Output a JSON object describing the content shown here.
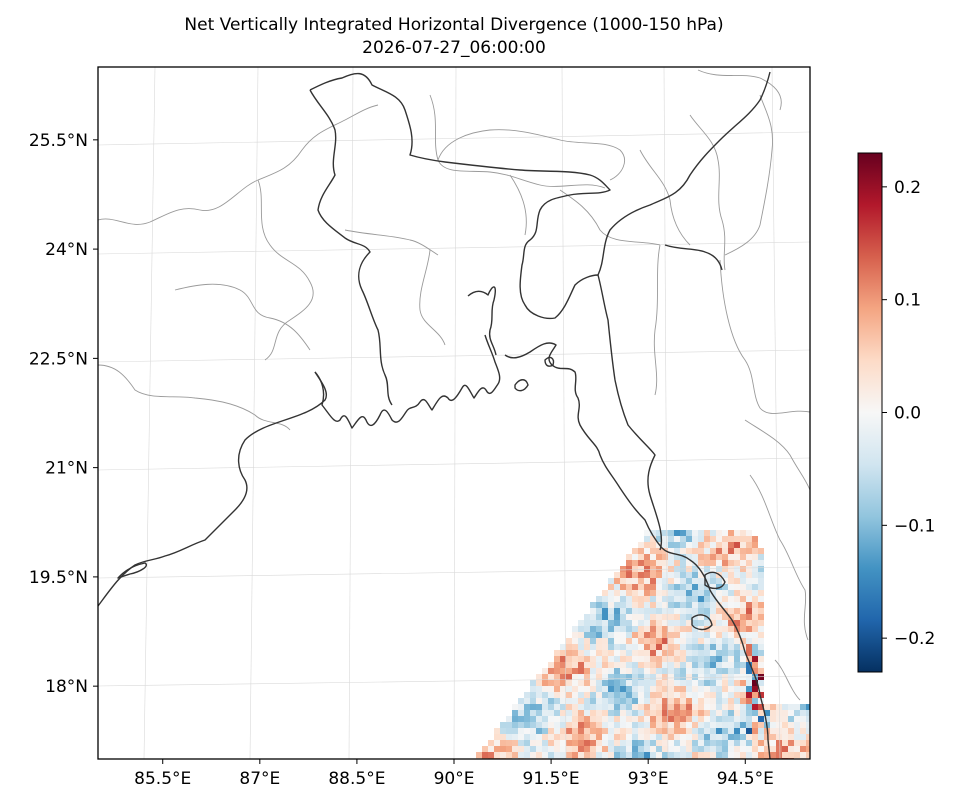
{
  "title": {
    "line1": "Net Vertically Integrated Horizontal Divergence (1000-150 hPa)",
    "line2": "2026-07-27_06:00:00"
  },
  "map": {
    "lon_range": [
      84.5,
      95.5
    ],
    "lat_range": [
      17.0,
      26.5
    ],
    "lon_ticks": [
      {
        "value": 85.5,
        "label": "85.5°E"
      },
      {
        "value": 87.0,
        "label": "87°E"
      },
      {
        "value": 88.5,
        "label": "88.5°E"
      },
      {
        "value": 90.0,
        "label": "90°E"
      },
      {
        "value": 91.5,
        "label": "91.5°E"
      },
      {
        "value": 93.0,
        "label": "93°E"
      },
      {
        "value": 94.5,
        "label": "94.5°E"
      }
    ],
    "lat_ticks": [
      {
        "value": 25.5,
        "label": "25.5°N"
      },
      {
        "value": 24.0,
        "label": "24°N"
      },
      {
        "value": 22.5,
        "label": "22.5°N"
      },
      {
        "value": 21.0,
        "label": "21°N"
      },
      {
        "value": 19.5,
        "label": "19.5°N"
      },
      {
        "value": 18.0,
        "label": "18°N"
      }
    ],
    "gridlines": true,
    "coastline_color": "#333333",
    "border_color": "#9a9a9a"
  },
  "colorbar": {
    "colormap": "RdBu_r",
    "range": [
      -0.23,
      0.23
    ],
    "ticks": [
      {
        "value": 0.2,
        "label": "0.2"
      },
      {
        "value": 0.1,
        "label": "0.1"
      },
      {
        "value": 0.0,
        "label": "0.0"
      },
      {
        "value": -0.1,
        "label": "−0.1"
      },
      {
        "value": -0.2,
        "label": "−0.2"
      }
    ],
    "orientation": "vertical",
    "placement": "right"
  },
  "colors": {
    "neg_max": "#053061",
    "neutral": "#f7f7f7",
    "pos_max": "#67001f"
  }
}
